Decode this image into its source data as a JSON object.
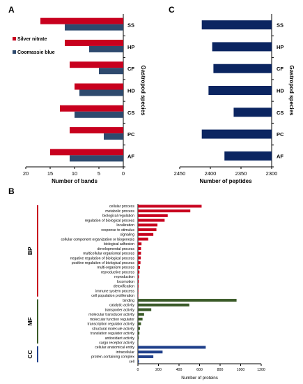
{
  "colors": {
    "silver": "#c8001e",
    "coomassie": "#2e4a6e",
    "peptide": "#0b2561",
    "bp": "#c8001e",
    "mf": "#3a5a28",
    "cc": "#1f3f8a",
    "axis": "#000000"
  },
  "chart_data": [
    {
      "panel": "A",
      "type": "bar",
      "orientation": "horizontal",
      "categories": [
        "SS",
        "HP",
        "CF",
        "HD",
        "CS",
        "PC",
        "AF"
      ],
      "series": [
        {
          "name": "Silver nitrate",
          "values": [
            17,
            12,
            11,
            10,
            13,
            11,
            15
          ]
        },
        {
          "name": "Coomassie blue",
          "values": [
            12,
            7,
            5,
            9,
            10,
            4,
            11
          ]
        }
      ],
      "xlabel": "Number of bands",
      "ylabel": "Gastropod species",
      "xlim": [
        20,
        0
      ],
      "xticks": [
        20,
        15,
        10,
        5,
        0
      ],
      "x_reversed": true,
      "legend_position": "top-left"
    },
    {
      "panel": "C",
      "type": "bar",
      "orientation": "horizontal",
      "categories": [
        "SS",
        "HP",
        "CF",
        "HD",
        "CS",
        "PC",
        "AF"
      ],
      "values": [
        2414,
        2397,
        2395,
        2403,
        2362,
        2414,
        2377
      ],
      "xlabel": "Number of peptides",
      "ylabel": "Gastropod species",
      "xlim": [
        2450,
        2300
      ],
      "xticks": [
        2450,
        2400,
        2350,
        2300
      ],
      "x_reversed": true
    },
    {
      "panel": "B",
      "type": "bar",
      "orientation": "horizontal",
      "xlabel": "Number of proteins",
      "xlim": [
        0,
        1200
      ],
      "xticks": [
        0,
        200,
        400,
        600,
        800,
        1000,
        1200
      ],
      "groups": [
        {
          "name": "BP",
          "categories": [
            "cellular process",
            "metabolic process",
            "biological regulation",
            "regulation of biological process",
            "localization",
            "response to stimulus",
            "signaling",
            "cellular component organization or biogenesis",
            "biological adhesion",
            "developmental process",
            "multicellular organismal process",
            "negative regulation of biological process",
            "positive regulation of biological process",
            "multi-organism process",
            "reproductive process",
            "reproduction",
            "locomotion",
            "detoxification",
            "immune system process",
            "cell population proliferation"
          ],
          "values": [
            620,
            510,
            290,
            260,
            190,
            180,
            150,
            100,
            35,
            30,
            30,
            28,
            25,
            20,
            15,
            10,
            8,
            6,
            5,
            4
          ]
        },
        {
          "name": "MF",
          "categories": [
            "binding",
            "catalytic activity",
            "transporter activity",
            "molecular transducer activity",
            "molecular function regulator",
            "transcription regulator activity",
            "structural molecule activity",
            "translation regulator activity",
            "antioxidant activity",
            "cargo receptor activity"
          ],
          "values": [
            960,
            500,
            130,
            60,
            45,
            30,
            20,
            15,
            8,
            4
          ]
        },
        {
          "name": "CC",
          "categories": [
            "cellular anatomical entity",
            "intracellular",
            "protein-containing complex",
            "cell"
          ],
          "values": [
            660,
            240,
            150,
            10
          ]
        }
      ]
    }
  ],
  "labels": {
    "panelA": "A",
    "panelB": "B",
    "panelC": "C"
  }
}
